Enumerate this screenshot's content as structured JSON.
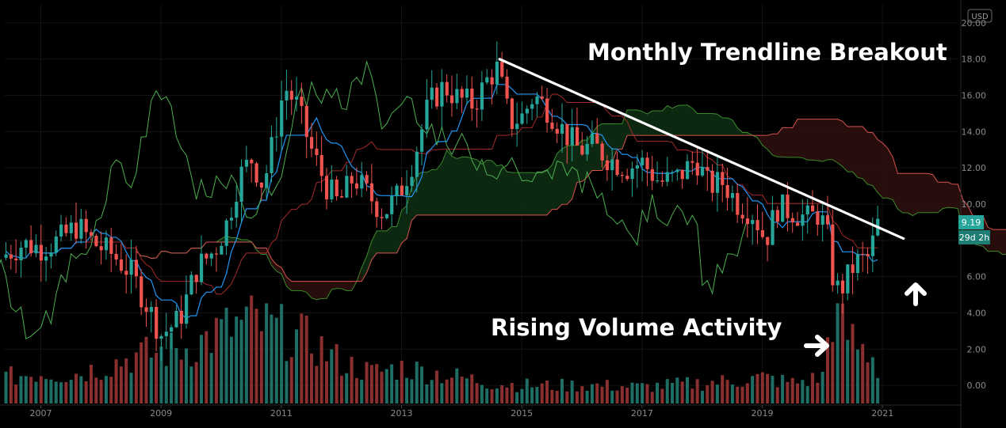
{
  "currency_badge": "USD",
  "price_label": "9.19",
  "countdown_label": "29d 2h",
  "annotations": {
    "top": "Monthly Trendline Breakout",
    "bottom": "Rising Volume Activity"
  },
  "colors": {
    "background": "#000000",
    "candle_up": "#26a69a",
    "candle_down": "#ef5350",
    "volume_up": "#1f6e66",
    "volume_down": "#8a2f2f",
    "conversion_line": "#2196f3",
    "base_line": "#a52a2a",
    "lagging_span": "#4caf50",
    "leading_span_a": "#3a8a2a",
    "leading_span_b": "#d9534f",
    "cloud_bear": "#2a0e0e",
    "cloud_bull": "#0d2a12",
    "trendline": "#ffffff"
  },
  "chart_data": {
    "type": "line",
    "chart_kind": "monthly candlestick with Ichimoku cloud and volume",
    "ylim": [
      -1,
      21
    ],
    "y_ticks": [
      "20.00",
      "18.00",
      "16.00",
      "14.00",
      "12.00",
      "10.00",
      "8.00",
      "6.00",
      "4.00",
      "2.00",
      "0.00"
    ],
    "x_ticks": [
      "2007",
      "2009",
      "2011",
      "2013",
      "2015",
      "2017",
      "2019",
      "2021"
    ],
    "xlim_year": [
      2006.4,
      2022.25
    ],
    "grid": true,
    "last_price": 9.19,
    "trendline": {
      "from": {
        "year": 2014.63,
        "price": 18.0
      },
      "to": {
        "year": 2021.35,
        "price": 8.1
      }
    },
    "price_path": [
      [
        2006.4,
        7.2
      ],
      [
        2006.7,
        7.8
      ],
      [
        2007.0,
        7.6
      ],
      [
        2007.3,
        8.0
      ],
      [
        2007.6,
        8.8
      ],
      [
        2007.9,
        7.8
      ],
      [
        2008.2,
        7.2
      ],
      [
        2008.5,
        6.2
      ],
      [
        2008.8,
        4.2
      ],
      [
        2009.0,
        2.8
      ],
      [
        2009.3,
        3.6
      ],
      [
        2009.6,
        6.5
      ],
      [
        2009.9,
        7.5
      ],
      [
        2010.1,
        9.0
      ],
      [
        2010.3,
        11.5
      ],
      [
        2010.5,
        12.5
      ],
      [
        2010.7,
        11.0
      ],
      [
        2010.9,
        14.0
      ],
      [
        2011.05,
        16.5
      ],
      [
        2011.25,
        15.5
      ],
      [
        2011.5,
        13.0
      ],
      [
        2011.75,
        11.0
      ],
      [
        2011.95,
        10.0
      ],
      [
        2012.2,
        11.5
      ],
      [
        2012.45,
        10.5
      ],
      [
        2012.7,
        9.5
      ],
      [
        2012.95,
        10.5
      ],
      [
        2013.2,
        12.5
      ],
      [
        2013.45,
        15.5
      ],
      [
        2013.7,
        16.5
      ],
      [
        2013.95,
        15.8
      ],
      [
        2014.2,
        15.5
      ],
      [
        2014.45,
        17.0
      ],
      [
        2014.6,
        17.5
      ],
      [
        2014.8,
        14.5
      ],
      [
        2015.0,
        14.8
      ],
      [
        2015.2,
        16.0
      ],
      [
        2015.45,
        15.2
      ],
      [
        2015.7,
        14.0
      ],
      [
        2015.95,
        13.0
      ],
      [
        2016.2,
        13.2
      ],
      [
        2016.45,
        12.5
      ],
      [
        2016.75,
        12.0
      ],
      [
        2017.0,
        12.3
      ],
      [
        2017.3,
        11.2
      ],
      [
        2017.6,
        11.5
      ],
      [
        2017.9,
        12.5
      ],
      [
        2018.1,
        11.0
      ],
      [
        2018.35,
        11.2
      ],
      [
        2018.6,
        10.0
      ],
      [
        2018.85,
        9.5
      ],
      [
        2019.05,
        8.0
      ],
      [
        2019.25,
        9.8
      ],
      [
        2019.5,
        9.6
      ],
      [
        2019.75,
        9.2
      ],
      [
        2019.95,
        9.5
      ],
      [
        2020.1,
        8.0
      ],
      [
        2020.2,
        5.2
      ],
      [
        2020.35,
        5.5
      ],
      [
        2020.55,
        6.8
      ],
      [
        2020.75,
        7.0
      ],
      [
        2020.9,
        8.5
      ],
      [
        2020.97,
        9.19
      ]
    ],
    "volume_profile": [
      [
        2006.4,
        0.25
      ],
      [
        2007.0,
        0.3
      ],
      [
        2007.5,
        0.28
      ],
      [
        2008.0,
        0.35
      ],
      [
        2008.5,
        0.45
      ],
      [
        2009.0,
        0.5
      ],
      [
        2009.5,
        0.55
      ],
      [
        2010.0,
        0.7
      ],
      [
        2010.5,
        0.8
      ],
      [
        2011.0,
        0.7
      ],
      [
        2011.5,
        0.6
      ],
      [
        2012.0,
        0.4
      ],
      [
        2012.5,
        0.3
      ],
      [
        2013.0,
        0.35
      ],
      [
        2013.5,
        0.3
      ],
      [
        2014.0,
        0.25
      ],
      [
        2014.5,
        0.2
      ],
      [
        2015.0,
        0.18
      ],
      [
        2015.5,
        0.17
      ],
      [
        2016.0,
        0.18
      ],
      [
        2016.5,
        0.17
      ],
      [
        2017.0,
        0.16
      ],
      [
        2017.5,
        0.18
      ],
      [
        2018.0,
        0.2
      ],
      [
        2018.5,
        0.22
      ],
      [
        2019.0,
        0.25
      ],
      [
        2019.5,
        0.2
      ],
      [
        2020.0,
        0.25
      ],
      [
        2020.15,
        0.9
      ],
      [
        2020.3,
        0.75
      ],
      [
        2020.6,
        0.55
      ],
      [
        2020.9,
        0.45
      ],
      [
        2020.97,
        0.05
      ]
    ]
  }
}
